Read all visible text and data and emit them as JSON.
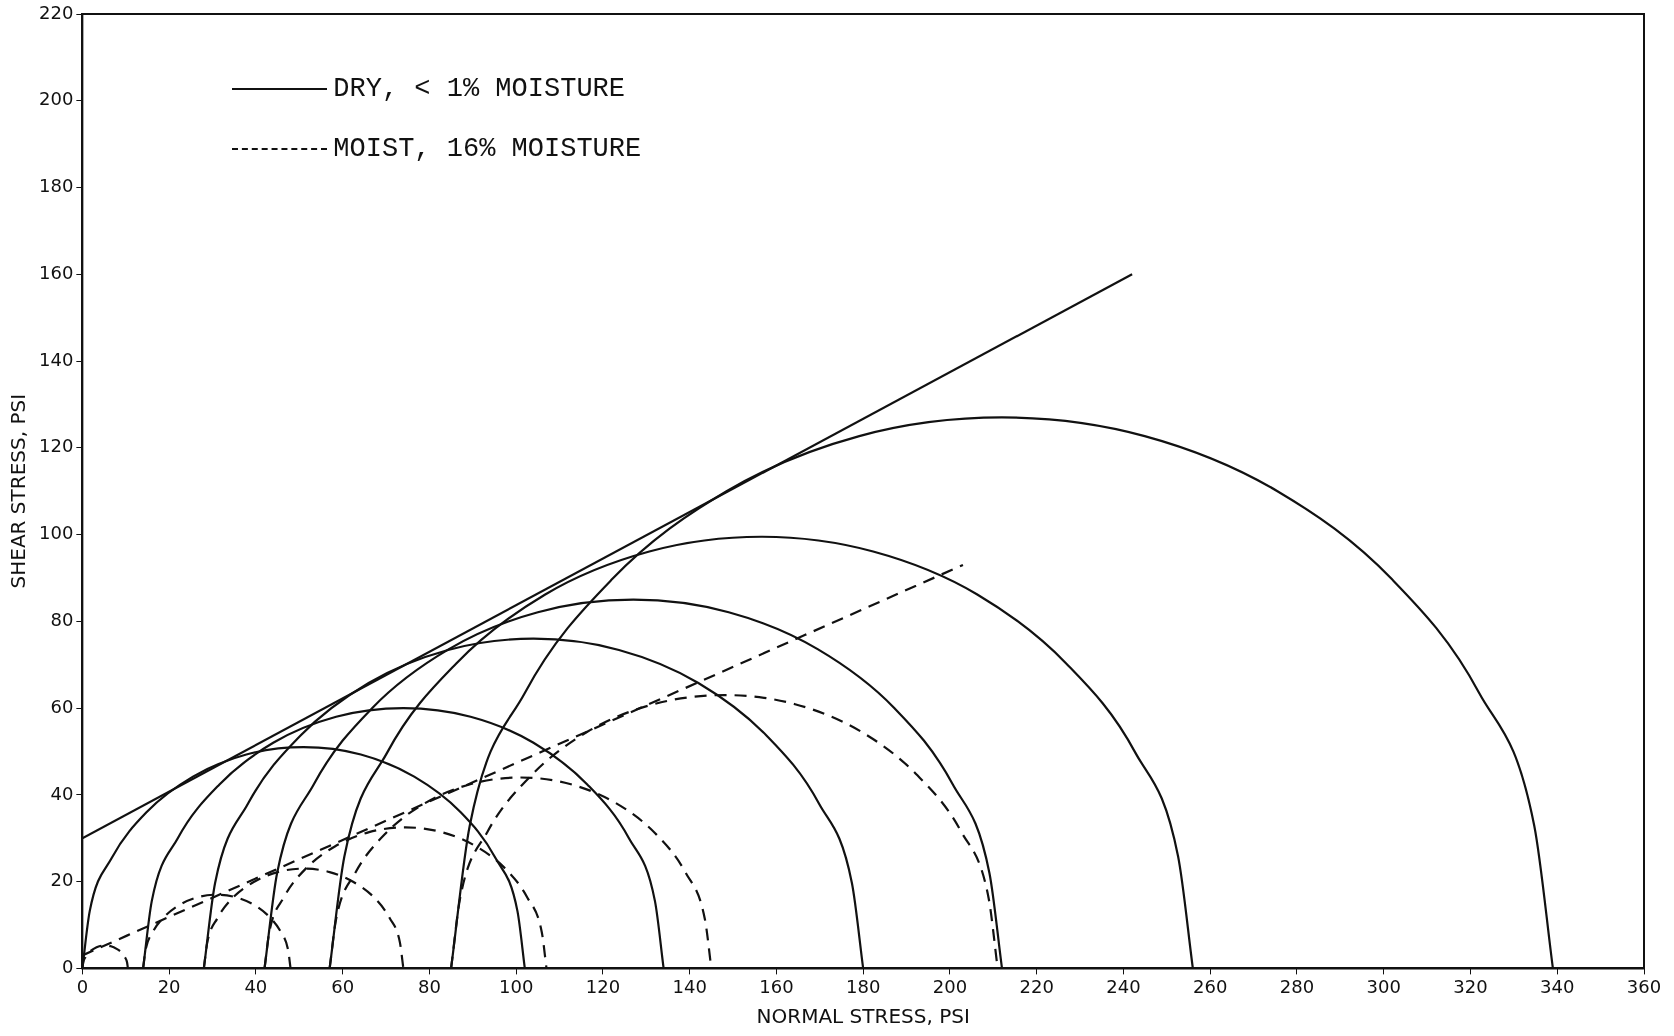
{
  "chart_data": {
    "type": "line",
    "xlabel": "NORMAL STRESS, PSI",
    "ylabel": "SHEAR STRESS, PSI",
    "xlim": [
      0,
      360
    ],
    "ylim": [
      0,
      220
    ],
    "xticks": [
      0,
      20,
      40,
      60,
      80,
      100,
      120,
      140,
      160,
      180,
      200,
      220,
      240,
      260,
      280,
      300,
      320,
      340,
      360
    ],
    "yticks": [
      0,
      20,
      40,
      60,
      80,
      100,
      120,
      140,
      160,
      180,
      200,
      220
    ],
    "grid": false,
    "legend": "top left",
    "marker": "none",
    "series": [
      {
        "name": "DRY, < 1% MOISTURE",
        "color": "#111111",
        "line_style": "solid",
        "x": [
          0,
          242
        ],
        "values": [
          30,
          160
        ]
      },
      {
        "name": "MOIST, 16% MOISTURE",
        "color": "#111111",
        "line_style": "dashed",
        "x": [
          0,
          203
        ],
        "values": [
          3,
          93
        ]
      },
      {
        "color": "#111111",
        "line_style": "solid",
        "x": [
          0,
          1.7,
          6.8,
          14.9,
          25.5,
          37.8,
          51,
          64.2,
          76.5,
          87.1,
          95.2,
          100.3,
          102
        ],
        "values": [
          0,
          13.2,
          25.5,
          36.1,
          44.2,
          49.3,
          51,
          49.3,
          44.2,
          36.1,
          25.5,
          13.2,
          0
        ]
      },
      {
        "color": "#111111",
        "line_style": "solid",
        "x": [
          14,
          16,
          22,
          31.6,
          44,
          58.5,
          74,
          89.5,
          104,
          116.4,
          126,
          132,
          134
        ],
        "values": [
          0,
          15.5,
          30,
          42.4,
          52,
          58,
          60,
          58,
          52,
          42.4,
          30,
          15.5,
          0
        ]
      },
      {
        "color": "#111111",
        "line_style": "solid",
        "x": [
          28,
          30.6,
          38.2,
          50.3,
          66,
          84.3,
          104,
          123.7,
          142,
          157.7,
          169.8,
          177.4,
          180
        ],
        "values": [
          0,
          19.7,
          38,
          53.7,
          65.8,
          73.4,
          76,
          73.4,
          65.8,
          53.7,
          38,
          19.7,
          0
        ]
      },
      {
        "color": "#111111",
        "line_style": "solid",
        "x": [
          42,
          44.9,
          53.4,
          66.9,
          84.5,
          105,
          127,
          149,
          169.5,
          187.1,
          200.6,
          209.1,
          212
        ],
        "values": [
          0,
          22,
          42.5,
          60.1,
          73.6,
          82.1,
          85,
          82.1,
          73.6,
          60.1,
          42.5,
          22,
          0
        ]
      },
      {
        "color": "#111111",
        "line_style": "solid",
        "x": [
          57,
          60.4,
          70.3,
          86.2,
          106.7,
          130.7,
          156.5,
          182.3,
          206.3,
          226.8,
          242.7,
          252.6,
          256
        ],
        "values": [
          0,
          25.8,
          49.8,
          70.3,
          86.2,
          96.1,
          99.5,
          96.1,
          86.2,
          70.3,
          49.8,
          25.8,
          0
        ]
      },
      {
        "color": "#111111",
        "line_style": "solid",
        "x": [
          85,
          89.3,
          102,
          122.2,
          148.5,
          179.1,
          212,
          244.9,
          275.5,
          301.8,
          322,
          334.7,
          339
        ],
        "values": [
          0,
          32.9,
          63.5,
          89.8,
          110,
          122.7,
          127,
          122.7,
          110,
          89.8,
          63.5,
          32.9,
          0
        ]
      },
      {
        "color": "#111111",
        "line_style": "dashed",
        "x": [
          0,
          0.2,
          0.7,
          1.5,
          2.6,
          3.9,
          5.3,
          6.6,
          7.9,
          9,
          9.8,
          10.3,
          10.5
        ],
        "values": [
          0,
          1.4,
          2.6,
          3.7,
          4.5,
          5.1,
          5.3,
          5.1,
          4.5,
          3.7,
          2.6,
          1.4,
          0
        ]
      },
      {
        "color": "#111111",
        "line_style": "dashed",
        "x": [
          14,
          14.6,
          16.3,
          19,
          22.5,
          26.6,
          31,
          35.4,
          39.5,
          43,
          45.7,
          47.4,
          48
        ],
        "values": [
          0,
          4.4,
          8.5,
          12,
          14.7,
          16.4,
          17,
          16.4,
          14.7,
          12,
          8.5,
          4.4,
          0
        ]
      },
      {
        "color": "#111111",
        "line_style": "dashed",
        "x": [
          28,
          28.8,
          31.1,
          34.7,
          39.5,
          45,
          51,
          57,
          62.5,
          67.3,
          70.9,
          73.2,
          74
        ],
        "values": [
          0,
          6,
          11.5,
          16.3,
          19.9,
          22.2,
          23,
          22.2,
          19.9,
          16.3,
          11.5,
          6,
          0
        ]
      },
      {
        "color": "#111111",
        "line_style": "dashed",
        "x": [
          42,
          43.1,
          46.4,
          51.5,
          58.2,
          66.1,
          74.5,
          82.9,
          90.8,
          97.5,
          102.6,
          105.9,
          107
        ],
        "values": [
          0,
          8.4,
          16.3,
          23,
          28.1,
          31.4,
          32.5,
          31.4,
          28.1,
          23,
          16.3,
          8.4,
          0
        ]
      },
      {
        "color": "#111111",
        "line_style": "dashed",
        "x": [
          57,
          58.5,
          62.9,
          69.9,
          79,
          89.6,
          101,
          112.4,
          123,
          132.1,
          139.1,
          143.5,
          145
        ],
        "values": [
          0,
          11.4,
          22,
          31.1,
          38.1,
          42.5,
          44,
          42.5,
          38.1,
          31.1,
          22,
          11.4,
          0
        ]
      },
      {
        "color": "#111111",
        "line_style": "dashed",
        "x": [
          85,
          87.1,
          93.4,
          103.5,
          116.5,
          131.7,
          148,
          164.3,
          179.5,
          192.5,
          202.6,
          208.9,
          211
        ],
        "values": [
          0,
          16.3,
          31.5,
          44.5,
          54.6,
          60.9,
          63,
          60.9,
          54.6,
          44.5,
          31.5,
          16.3,
          0
        ]
      }
    ]
  }
}
